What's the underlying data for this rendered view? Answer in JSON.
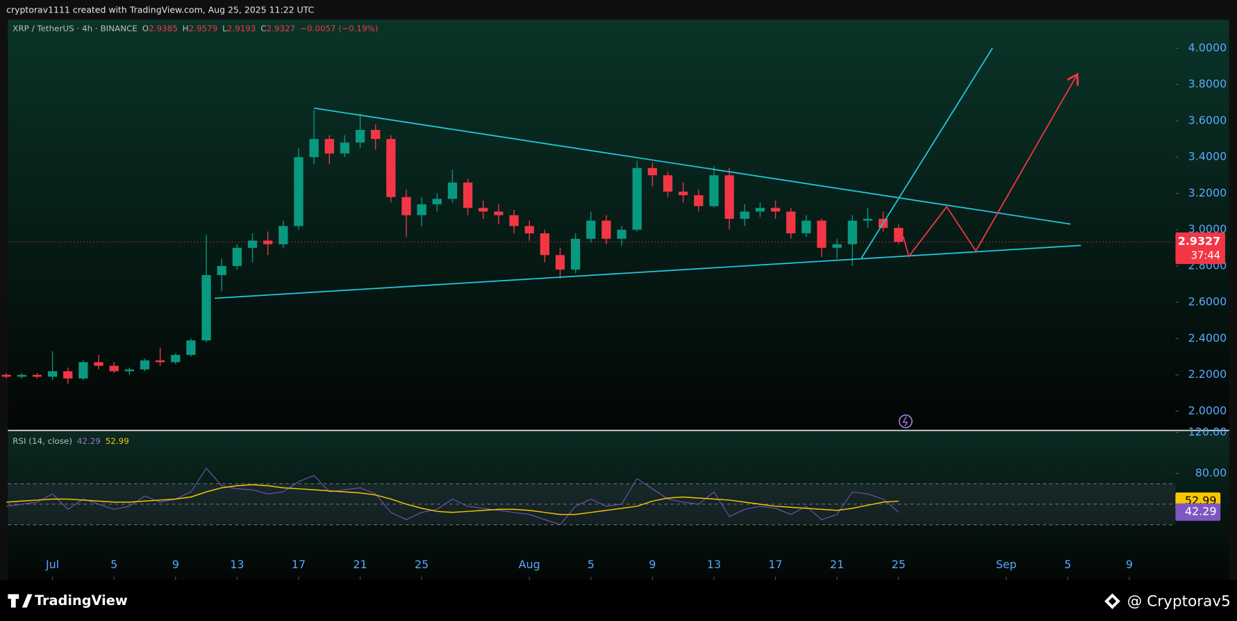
{
  "chart_data": {
    "type": "candlestick",
    "credit": "cryptorav1111 created with TradingView.com, Aug 25, 2025 11:22 UTC",
    "symbol": "XRP / TetherUS · 4h · BINANCE",
    "ohlc": {
      "open": 2.9385,
      "high": 2.9579,
      "low": 2.9193,
      "close": 2.9327
    },
    "ohlc_letters": [
      "O",
      "H",
      "L",
      "C"
    ],
    "change": "−0.0057 (−0.19%)",
    "last_price": 2.9327,
    "countdown": "37:44",
    "colors": {
      "up": "#089981",
      "down": "#f23645"
    },
    "x": [
      -3,
      -2,
      -1,
      0,
      1,
      2,
      3,
      4,
      5,
      6,
      7,
      8,
      9,
      10,
      11,
      12,
      13,
      14,
      15,
      16,
      17,
      18,
      19,
      20,
      21,
      22,
      23,
      24,
      25,
      26,
      27,
      28,
      29,
      30,
      31,
      32,
      33,
      34,
      35,
      36,
      37,
      38,
      39,
      40,
      41,
      42,
      43,
      44,
      45,
      46,
      47,
      48,
      49,
      50,
      51,
      52,
      53,
      54,
      55
    ],
    "open": [
      2.2,
      2.19,
      2.2,
      2.19,
      2.22,
      2.18,
      2.27,
      2.25,
      2.22,
      2.23,
      2.28,
      2.27,
      2.31,
      2.39,
      2.75,
      2.8,
      2.9,
      2.94,
      2.92,
      3.02,
      3.4,
      3.5,
      3.42,
      3.48,
      3.55,
      3.5,
      3.18,
      3.08,
      3.14,
      3.17,
      3.26,
      3.12,
      3.1,
      3.08,
      3.02,
      2.98,
      2.86,
      2.78,
      2.95,
      3.05,
      2.95,
      3.0,
      3.34,
      3.3,
      3.21,
      3.19,
      3.13,
      3.3,
      3.06,
      3.1,
      3.12,
      3.1,
      2.98,
      3.05,
      2.9,
      2.92,
      3.05,
      3.06,
      3.01
    ],
    "high": [
      2.21,
      2.21,
      2.21,
      2.33,
      2.24,
      2.28,
      2.31,
      2.27,
      2.24,
      2.29,
      2.35,
      2.32,
      2.4,
      2.97,
      2.84,
      2.92,
      2.98,
      2.99,
      3.05,
      3.45,
      3.66,
      3.52,
      3.52,
      3.64,
      3.58,
      3.52,
      3.22,
      3.18,
      3.2,
      3.33,
      3.28,
      3.16,
      3.14,
      3.11,
      3.05,
      3.0,
      2.9,
      2.98,
      3.1,
      3.08,
      3.02,
      3.38,
      3.37,
      3.32,
      3.26,
      3.22,
      3.35,
      3.34,
      3.14,
      3.15,
      3.16,
      3.12,
      3.08,
      3.06,
      2.95,
      3.08,
      3.12,
      3.1,
      3.03
    ],
    "low": [
      2.18,
      2.18,
      2.18,
      2.17,
      2.15,
      2.17,
      2.23,
      2.21,
      2.2,
      2.22,
      2.25,
      2.26,
      2.3,
      2.38,
      2.66,
      2.78,
      2.82,
      2.86,
      2.9,
      3.0,
      3.36,
      3.36,
      3.4,
      3.45,
      3.44,
      3.15,
      2.96,
      3.02,
      3.1,
      3.15,
      3.08,
      3.06,
      3.03,
      2.98,
      2.94,
      2.82,
      2.73,
      2.76,
      2.93,
      2.92,
      2.91,
      2.99,
      3.24,
      3.18,
      3.15,
      3.1,
      3.12,
      3.0,
      3.02,
      3.07,
      3.06,
      2.95,
      2.96,
      2.85,
      2.84,
      2.8,
      3.01,
      2.99,
      2.92
    ],
    "close": [
      2.19,
      2.2,
      2.19,
      2.22,
      2.18,
      2.27,
      2.25,
      2.22,
      2.23,
      2.28,
      2.27,
      2.31,
      2.39,
      2.75,
      2.8,
      2.9,
      2.94,
      2.92,
      3.02,
      3.4,
      3.5,
      3.42,
      3.48,
      3.55,
      3.5,
      3.18,
      3.08,
      3.14,
      3.17,
      3.26,
      3.12,
      3.1,
      3.08,
      3.02,
      2.98,
      2.86,
      2.78,
      2.95,
      3.05,
      2.95,
      3.0,
      3.34,
      3.3,
      3.21,
      3.19,
      3.13,
      3.3,
      3.06,
      3.1,
      3.12,
      3.1,
      2.98,
      3.05,
      2.9,
      2.92,
      3.05,
      3.06,
      3.01,
      2.9327
    ],
    "xlim": [
      -2.9,
      73
    ],
    "xticks": [
      {
        "value": 0,
        "label": "Jul"
      },
      {
        "value": 4,
        "label": "5"
      },
      {
        "value": 8,
        "label": "9"
      },
      {
        "value": 12,
        "label": "13"
      },
      {
        "value": 16,
        "label": "17"
      },
      {
        "value": 20,
        "label": "21"
      },
      {
        "value": 24,
        "label": "25"
      },
      {
        "value": 31,
        "label": "Aug"
      },
      {
        "value": 35,
        "label": "5"
      },
      {
        "value": 39,
        "label": "9"
      },
      {
        "value": 43,
        "label": "13"
      },
      {
        "value": 47,
        "label": "17"
      },
      {
        "value": 51,
        "label": "21"
      },
      {
        "value": 55,
        "label": "25"
      },
      {
        "value": 62,
        "label": "Sep"
      },
      {
        "value": 66,
        "label": "5"
      },
      {
        "value": 70,
        "label": "9"
      }
    ],
    "ylim": [
      1.896,
      4.157
    ],
    "yticks": [
      {
        "value": 2,
        "label": "2.0000"
      },
      {
        "value": 2.2,
        "label": "2.2000"
      },
      {
        "value": 2.4,
        "label": "2.4000"
      },
      {
        "value": 2.6,
        "label": "2.6000"
      },
      {
        "value": 2.8,
        "label": "2.8000"
      },
      {
        "value": 3,
        "label": "3.0000"
      },
      {
        "value": 3.2,
        "label": "3.2000"
      },
      {
        "value": 3.4,
        "label": "3.4000"
      },
      {
        "value": 3.6,
        "label": "3.6000"
      },
      {
        "value": 3.8,
        "label": "3.8000"
      },
      {
        "value": 4,
        "label": "4.0000"
      }
    ],
    "rsi": {
      "title": "RSI (14, close)",
      "series": [
        {
          "name": "RSI",
          "color": "#7e57c2",
          "values": [
            48,
            50,
            52,
            60,
            45,
            55,
            50,
            45,
            48,
            58,
            52,
            55,
            62,
            85,
            68,
            65,
            64,
            60,
            62,
            72,
            78,
            62,
            64,
            66,
            60,
            42,
            35,
            42,
            45,
            55,
            48,
            46,
            44,
            42,
            40,
            35,
            30,
            48,
            55,
            48,
            50,
            75,
            65,
            55,
            52,
            50,
            62,
            38,
            45,
            48,
            46,
            40,
            48,
            35,
            40,
            62,
            60,
            55,
            42.29
          ]
        },
        {
          "name": "RSI-based MA",
          "color": "#f7c600",
          "values": [
            52,
            53,
            54,
            55,
            55,
            54,
            53,
            52,
            52,
            53,
            54,
            55,
            57,
            62,
            66,
            68,
            69,
            68,
            66,
            65,
            64,
            63,
            62,
            61,
            59,
            55,
            50,
            46,
            43,
            42,
            43,
            44,
            45,
            45,
            44,
            42,
            40,
            40,
            42,
            44,
            46,
            48,
            53,
            56,
            57,
            56,
            55,
            54,
            52,
            50,
            48,
            47,
            46,
            45,
            44,
            46,
            49,
            52,
            52.99
          ]
        }
      ],
      "last": 42.29,
      "ma_last": 52.99,
      "bands": [
        30,
        50,
        70
      ],
      "ylim": [
        -23.8,
        121.5
      ],
      "yticks": [
        {
          "value": 80,
          "label": "80.00"
        },
        {
          "value": 120,
          "label": "120.00"
        }
      ]
    },
    "brand": "TradingView",
    "watermark": "@ Cryptorav5"
  }
}
